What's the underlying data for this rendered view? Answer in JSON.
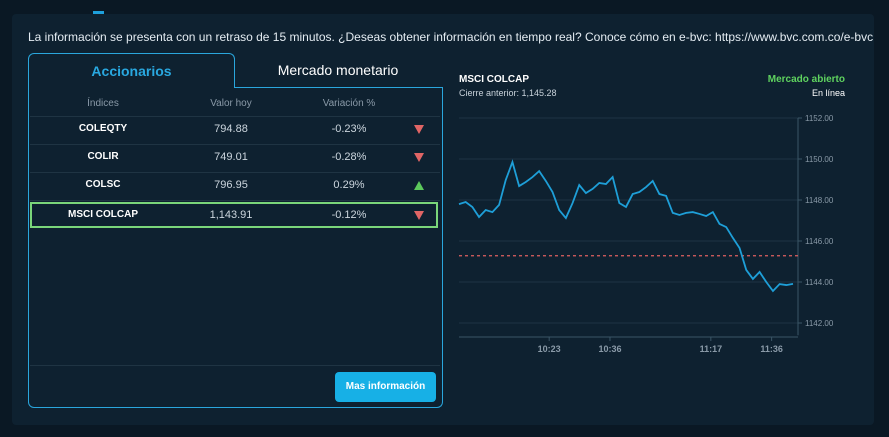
{
  "notice": "La información se presenta con un retraso de 15 minutos. ¿Deseas obtener información en tiempo real? Conoce cómo en e-bvc: https://www.bvc.com.co/e-bvc",
  "tabs": [
    "Accionarios",
    "Mercado monetario"
  ],
  "table": {
    "headers": [
      "Índices",
      "Valor hoy",
      "Variación %"
    ],
    "rows": [
      [
        "COLEQTY",
        "794.88",
        "-0.23%"
      ],
      [
        "COLIR",
        "749.01",
        "-0.28%"
      ],
      [
        "COLSC",
        "796.95",
        "0.29%"
      ],
      [
        "MSCI COLCAP",
        "1,143.91",
        "-0.12%"
      ]
    ]
  },
  "button": "Mas información",
  "chart_data": {
    "type": "line",
    "title": "MSCI COLCAP",
    "subtitle": "Cierre anterior: 1,145.28",
    "status": "Mercado abierto",
    "status_detail": "En línea",
    "color": "#1e9fd8",
    "reference": 1145.28,
    "reference_color": "#e06060",
    "values": [
      1147.8,
      1147.9,
      1147.66,
      1147.17,
      1147.51,
      1147.41,
      1147.76,
      1148.98,
      1149.85,
      1148.68,
      1148.88,
      1149.12,
      1149.41,
      1148.93,
      1148.39,
      1147.51,
      1147.12,
      1147.85,
      1148.73,
      1148.34,
      1148.54,
      1148.83,
      1148.78,
      1149.12,
      1147.85,
      1147.66,
      1148.29,
      1148.39,
      1148.63,
      1148.93,
      1148.29,
      1148.2,
      1147.37,
      1147.27,
      1147.37,
      1147.41,
      1147.32,
      1147.22,
      1147.41,
      1146.83,
      1146.68,
      1146.15,
      1145.66,
      1144.59,
      1144.15,
      1144.49,
      1144.0,
      1143.56,
      1143.9,
      1143.85,
      1143.91
    ],
    "ylim": [
      1141.4,
      1152
    ],
    "yticks": [
      {
        "value": 1142,
        "label": "1142.00"
      },
      {
        "value": 1144,
        "label": "1144.00"
      },
      {
        "value": 1146,
        "label": "1146.00"
      },
      {
        "value": 1148,
        "label": "1148.00"
      },
      {
        "value": 1150,
        "label": "1150.00"
      },
      {
        "value": 1152,
        "label": "1152.00"
      }
    ],
    "xlim": [
      0,
      50
    ],
    "xticks": [
      {
        "value": 13.5,
        "label": "10:23"
      },
      {
        "value": 22.6,
        "label": "10:36"
      },
      {
        "value": 37.7,
        "label": "11:17"
      },
      {
        "value": 46.8,
        "label": "11:36"
      }
    ],
    "grid": true
  }
}
